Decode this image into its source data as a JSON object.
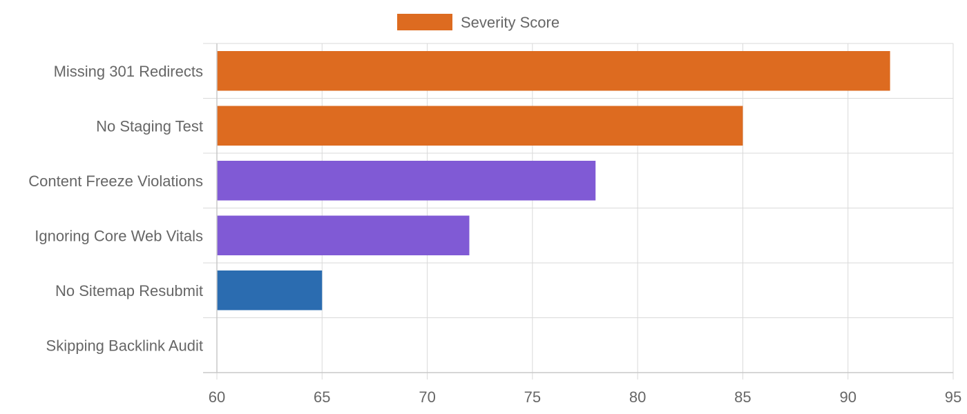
{
  "chart_data": {
    "type": "bar",
    "orientation": "horizontal",
    "categories": [
      "Missing 301 Redirects",
      "No Staging Test",
      "Content Freeze Violations",
      "Ignoring Core Web Vitals",
      "No Sitemap Resubmit",
      "Skipping Backlink Audit"
    ],
    "series": [
      {
        "name": "Severity Score",
        "values": [
          92,
          85,
          78,
          72,
          65,
          60
        ]
      }
    ],
    "bar_colors": [
      "#dd6b20",
      "#dd6b20",
      "#805ad5",
      "#805ad5",
      "#2b6cb0",
      "#2b6cb0"
    ],
    "legend_color": "#dd6b20",
    "xlim": [
      60,
      95
    ],
    "x_ticks": [
      "60",
      "65",
      "70",
      "75",
      "80",
      "85",
      "90",
      "95"
    ],
    "grid": true,
    "legend_position": "top-center"
  }
}
